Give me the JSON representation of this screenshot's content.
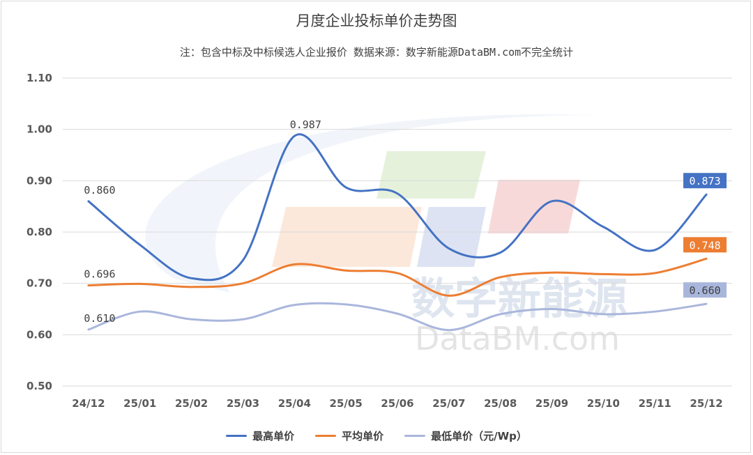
{
  "title": "月度企业投标单价走势图",
  "subtitle": "注：包含中标及中标候选人企业报价 数据来源：数字新能源DataBM.com不完全统计",
  "watermark": {
    "cn": "数字新能源",
    "en": "DataBM.com"
  },
  "colors": {
    "max": "#4472c4",
    "avg": "#ed7d31",
    "min": "#a9b6dc",
    "grid": "#d9d9d9"
  },
  "chart_data": {
    "type": "line",
    "title": "月度企业投标单价走势图",
    "categories": [
      "24/12",
      "25/01",
      "25/02",
      "25/03",
      "25/04",
      "25/05",
      "25/06",
      "25/07",
      "25/08",
      "25/09",
      "25/10",
      "25/11",
      "25/12"
    ],
    "ylim": [
      0.5,
      1.1
    ],
    "yticks": [
      "1.10",
      "1.00",
      "0.90",
      "0.80",
      "0.70",
      "0.60",
      "0.50"
    ],
    "grid": true,
    "legend_position": "bottom",
    "series": [
      {
        "name": "最高单价",
        "values": [
          0.86,
          0.775,
          0.71,
          0.745,
          0.987,
          0.887,
          0.875,
          0.768,
          0.76,
          0.86,
          0.81,
          0.765,
          0.873
        ]
      },
      {
        "name": "平均单价",
        "values": [
          0.696,
          0.699,
          0.693,
          0.7,
          0.737,
          0.725,
          0.72,
          0.676,
          0.712,
          0.721,
          0.718,
          0.72,
          0.748
        ]
      },
      {
        "name": "最低单价（元/Wp）",
        "values": [
          0.61,
          0.645,
          0.63,
          0.63,
          0.658,
          0.659,
          0.641,
          0.609,
          0.64,
          0.65,
          0.64,
          0.645,
          0.66
        ]
      }
    ],
    "data_labels": [
      {
        "series": 0,
        "index": 0,
        "text": "0.860"
      },
      {
        "series": 0,
        "index": 4,
        "text": "0.987"
      },
      {
        "series": 0,
        "index": 12,
        "text": "0.873",
        "boxed": true
      },
      {
        "series": 1,
        "index": 0,
        "text": "0.696"
      },
      {
        "series": 1,
        "index": 12,
        "text": "0.748",
        "boxed": true
      },
      {
        "series": 2,
        "index": 0,
        "text": "0.610"
      },
      {
        "series": 2,
        "index": 12,
        "text": "0.660",
        "boxed": true
      }
    ]
  }
}
